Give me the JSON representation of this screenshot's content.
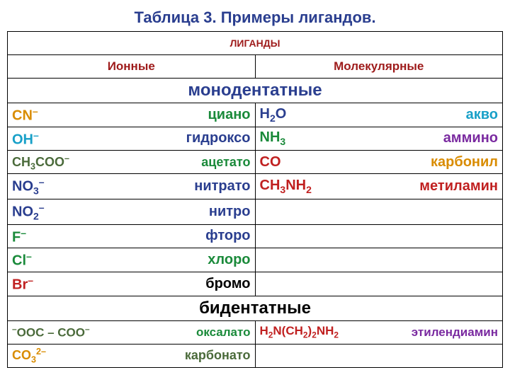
{
  "title": {
    "text": "Таблица 3. Примеры лигандов.",
    "color": "#2a3e8f",
    "fontsize": 22
  },
  "header": {
    "top": {
      "text": "ЛИГАНДЫ",
      "color": "#9e1b1b"
    },
    "left": {
      "text": "Ионные",
      "color": "#9e1b1b",
      "fontsize": 17
    },
    "right": {
      "text": "Молекулярные",
      "color": "#9e1b1b",
      "fontsize": 17
    }
  },
  "sections": {
    "mono": {
      "text": "монодентатные",
      "color": "#2a3e8f",
      "fontsize": 24
    },
    "bi": {
      "text": "бидентатные",
      "color": "#000000",
      "fontsize": 24
    }
  },
  "rows": {
    "r1": {
      "left_formula": "CN<sup>–</sup>",
      "left_color": "#d98c00",
      "left_name": "циано",
      "left_name_color": "#1a8a3a",
      "left_fontsize": 20,
      "right_formula": "H<sub>2</sub>O",
      "right_color": "#2a3e8f",
      "right_name": "акво",
      "right_name_color": "#18a0c8",
      "right_fontsize": 20
    },
    "r2": {
      "left_formula": "OH<sup>–</sup>",
      "left_color": "#18a0c8",
      "left_name": "гидроксо",
      "left_name_color": "#2a3e8f",
      "left_fontsize": 20,
      "right_formula": "NH<sub>3</sub>",
      "right_color": "#1a8a3a",
      "right_name": "аммино",
      "right_name_color": "#7a2aa0",
      "right_fontsize": 20
    },
    "r3": {
      "left_formula": "CH<sub>3</sub>COO<sup>–</sup>",
      "left_color": "#4a6a3a",
      "left_name": "ацетато",
      "left_name_color": "#1a8a3a",
      "left_fontsize": 18,
      "right_formula": "CO",
      "right_color": "#c02020",
      "right_name": "карбонил",
      "right_name_color": "#d98c00",
      "right_fontsize": 20
    },
    "r4": {
      "left_formula": "NO<sub>3</sub><sup>–</sup>",
      "left_color": "#2a3e8f",
      "left_name": "нитрато",
      "left_name_color": "#2a3e8f",
      "left_fontsize": 20,
      "right_formula": "CH<sub>3</sub>NH<sub>2</sub>",
      "right_color": "#c02020",
      "right_name": "метиламин",
      "right_name_color": "#c02020",
      "right_fontsize": 20
    },
    "r5": {
      "left_formula": "NO<sub>2</sub><sup>–</sup>",
      "left_color": "#2a3e8f",
      "left_name": "нитро",
      "left_name_color": "#2a3e8f",
      "left_fontsize": 20
    },
    "r6": {
      "left_formula": "F<sup>–</sup>",
      "left_color": "#1a8a3a",
      "left_name": "фторо",
      "left_name_color": "#2a3e8f",
      "left_fontsize": 20
    },
    "r7": {
      "left_formula": "Cl<sup>–</sup>",
      "left_color": "#1a8a3a",
      "left_name": "хлоро",
      "left_name_color": "#1a8a3a",
      "left_fontsize": 20
    },
    "r8": {
      "left_formula": "Br<sup>–</sup>",
      "left_color": "#c02020",
      "left_name": "бромо",
      "left_name_color": "#000000",
      "left_fontsize": 20
    },
    "r9": {
      "left_formula": "<sup>–</sup>OOC – COO<sup>–</sup>",
      "left_color": "#4a6a3a",
      "left_name": "оксалато",
      "left_name_color": "#1a8a3a",
      "left_fontsize": 17,
      "right_formula": "H<sub>2</sub>N(CH<sub>2</sub>)<sub>2</sub>NH<sub>2</sub>",
      "right_color": "#c02020",
      "right_name": "этилендиамин",
      "right_name_color": "#7a2aa0",
      "right_fontsize": 17
    },
    "r10": {
      "left_formula": "CO<sub>3</sub><sup>2–</sup>",
      "left_color": "#d98c00",
      "left_name": "карбонато",
      "left_name_color": "#4a6a3a",
      "left_fontsize": 18
    }
  }
}
